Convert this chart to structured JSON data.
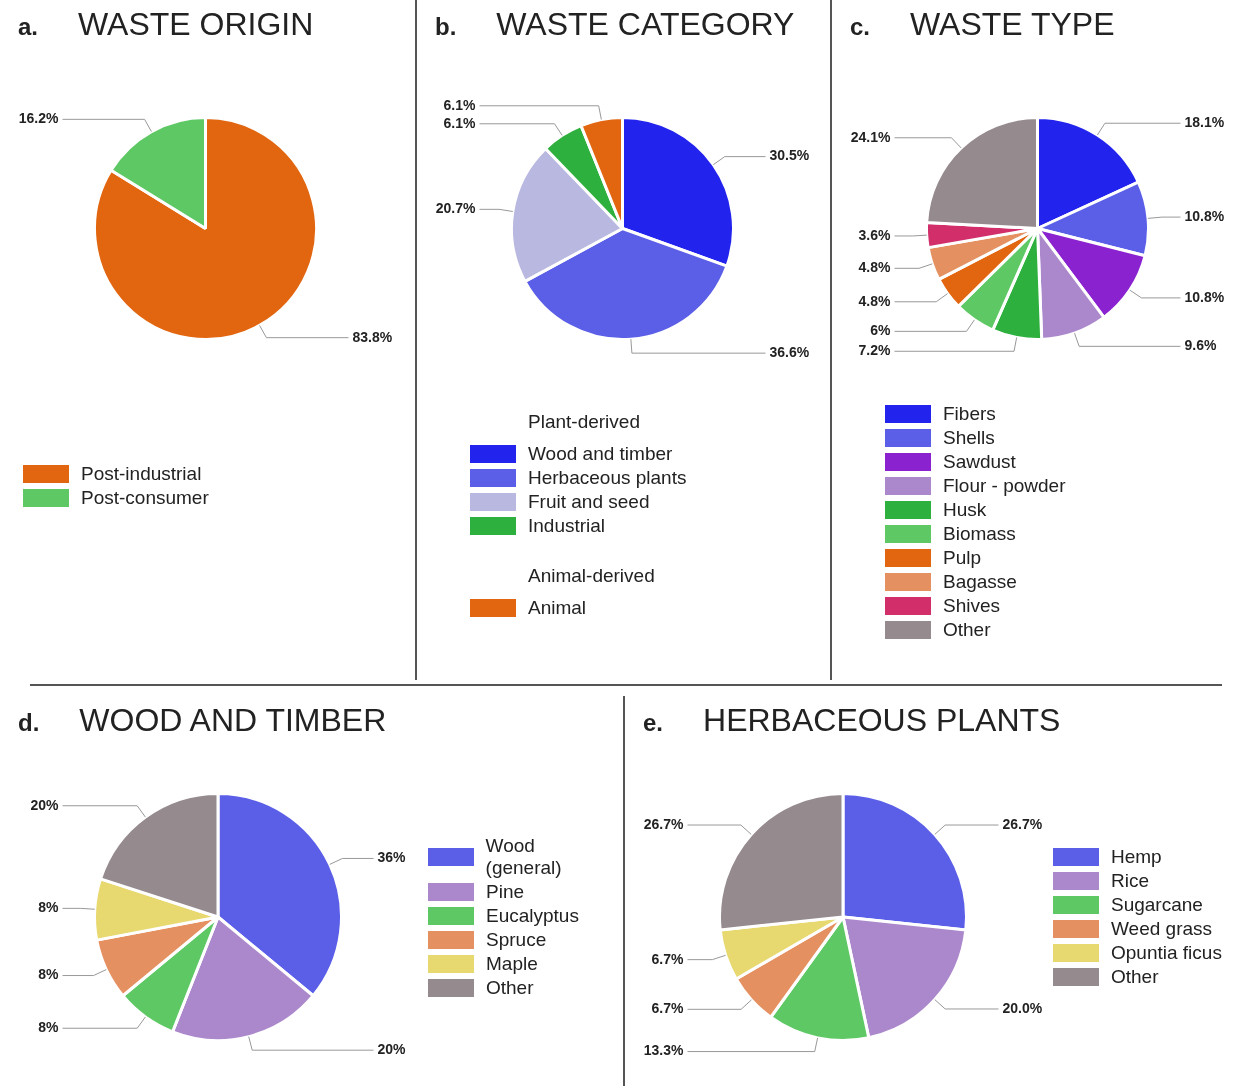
{
  "chart_data": [
    {
      "type": "pie",
      "title": "WASTE ORIGIN",
      "annotations": [
        "a."
      ],
      "legend": "bottom left",
      "categories": [
        "Post-industrial",
        "Post-consumer"
      ],
      "values": [
        83.8,
        16.2
      ],
      "colors": [
        "#e2650f",
        "#5ec865"
      ],
      "value_labels": [
        "83.8%",
        "16.2%"
      ]
    },
    {
      "type": "pie",
      "title": "WASTE CATEGORY",
      "annotations": [
        "b.",
        "Animal-derived"
      ],
      "legend_title": "Plant-derived",
      "legend": "bottom",
      "categories": [
        "Wood and timber",
        "Herbaceous plants",
        "Fruit and seed",
        "Industrial",
        "Animal"
      ],
      "values": [
        30.5,
        36.6,
        20.7,
        6.1,
        6.1
      ],
      "colors": [
        "#2323ee",
        "#5b5fe8",
        "#b8b8e0",
        "#2eb03e",
        "#e2650f"
      ],
      "value_labels": [
        "30.5%",
        "36.6%",
        "20.7%",
        "6.1%",
        "6.1%"
      ]
    },
    {
      "type": "pie",
      "title": "WASTE TYPE",
      "annotations": [
        "c."
      ],
      "legend": "bottom",
      "categories": [
        "Fibers",
        "Shells",
        "Sawdust",
        "Flour - powder",
        "Husk",
        "Biomass",
        "Pulp",
        "Bagasse",
        "Shives",
        "Other"
      ],
      "values": [
        18.1,
        10.8,
        10.8,
        9.6,
        7.2,
        6,
        4.8,
        4.8,
        3.6,
        24.1
      ],
      "colors": [
        "#2323ee",
        "#5b5fe8",
        "#8a22d0",
        "#ab88cc",
        "#2eb03e",
        "#5ec865",
        "#e2650f",
        "#e59060",
        "#d12e6a",
        "#958a8e"
      ],
      "value_labels": [
        "18.1%",
        "10.8%",
        "10.8%",
        "9.6%",
        "7.2%",
        "6%",
        "4.8%",
        "4.8%",
        "3.6%",
        "24.1%"
      ]
    },
    {
      "type": "pie",
      "title": "WOOD AND TIMBER",
      "annotations": [
        "d."
      ],
      "legend": "right",
      "categories": [
        "Wood (general)",
        "Pine",
        "Eucalyptus",
        "Spruce",
        "Maple",
        "Other"
      ],
      "values": [
        36,
        20,
        8,
        8,
        8,
        20
      ],
      "colors": [
        "#5b5fe8",
        "#ab88cc",
        "#5ec865",
        "#e59060",
        "#e8d870",
        "#958a8e"
      ],
      "value_labels": [
        "36%",
        "20%",
        "8%",
        "8%",
        "8%",
        "20%"
      ]
    },
    {
      "type": "pie",
      "title": "HERBACEOUS PLANTS",
      "annotations": [
        "e."
      ],
      "legend": "right",
      "categories": [
        "Hemp",
        "Rice",
        "Sugarcane",
        "Weed grass",
        "Opuntia ficus",
        "Other"
      ],
      "values": [
        26.7,
        20.0,
        13.3,
        6.7,
        6.7,
        26.7
      ],
      "colors": [
        "#5b5fe8",
        "#ab88cc",
        "#5ec865",
        "#e59060",
        "#e8d870",
        "#958a8e"
      ],
      "value_labels": [
        "26.7%",
        "20.0%",
        "13.3%",
        "6.7%",
        "6.7%",
        "26.7%"
      ]
    }
  ]
}
